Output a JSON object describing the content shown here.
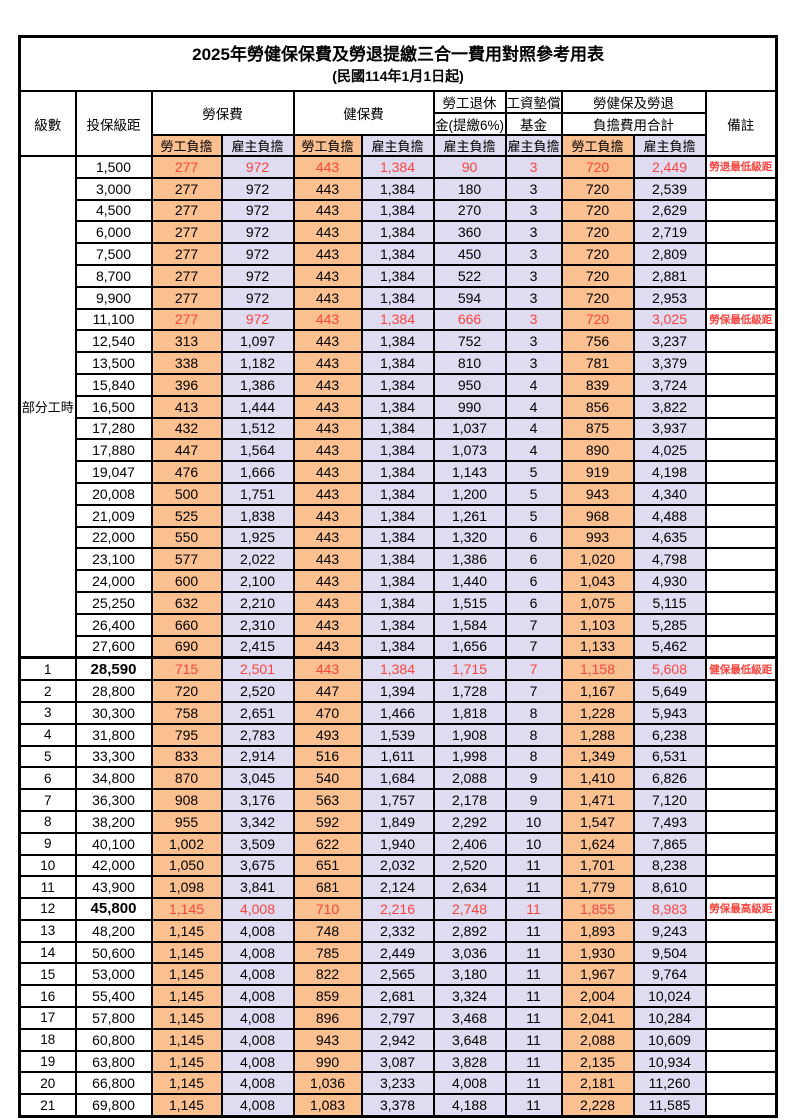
{
  "title": "2025年勞健保保費及勞退提繳三合一費用對照參考用表",
  "subtitle": "(民國114年1月1日起)",
  "header": {
    "level": "級數",
    "bracket": "投保級距",
    "labor_fee": "勞保費",
    "health_fee": "健保費",
    "pension_line1": "勞工退休",
    "pension_line2": "金(提繳6%)",
    "wage_fund_line1": "工資墊償",
    "wage_fund_line2": "基金",
    "total_line1": "勞健保及勞退",
    "total_line2": "負擔費用合計",
    "remark": "備註",
    "employee": "勞工負擔",
    "employer": "雇主負擔"
  },
  "groups": {
    "part_time_label": "部分工時"
  },
  "part_time_rowspan": 23,
  "colors": {
    "employee_bg": "#FAC090",
    "employer_bg": "#DFDBF0",
    "highlight_red": "#FA4540",
    "border": "#000000"
  },
  "rows": [
    {
      "level": null,
      "bracket": "1,500",
      "labor_emp": "277",
      "labor_er": "972",
      "health_emp": "443",
      "health_er": "1,384",
      "pension_er": "90",
      "fund_er": "3",
      "total_emp": "720",
      "total_er": "2,449",
      "remark": "勞退最低級距",
      "red": true
    },
    {
      "level": null,
      "bracket": "3,000",
      "labor_emp": "277",
      "labor_er": "972",
      "health_emp": "443",
      "health_er": "1,384",
      "pension_er": "180",
      "fund_er": "3",
      "total_emp": "720",
      "total_er": "2,539",
      "remark": "",
      "red": false
    },
    {
      "level": null,
      "bracket": "4,500",
      "labor_emp": "277",
      "labor_er": "972",
      "health_emp": "443",
      "health_er": "1,384",
      "pension_er": "270",
      "fund_er": "3",
      "total_emp": "720",
      "total_er": "2,629",
      "remark": "",
      "red": false
    },
    {
      "level": null,
      "bracket": "6,000",
      "labor_emp": "277",
      "labor_er": "972",
      "health_emp": "443",
      "health_er": "1,384",
      "pension_er": "360",
      "fund_er": "3",
      "total_emp": "720",
      "total_er": "2,719",
      "remark": "",
      "red": false
    },
    {
      "level": null,
      "bracket": "7,500",
      "labor_emp": "277",
      "labor_er": "972",
      "health_emp": "443",
      "health_er": "1,384",
      "pension_er": "450",
      "fund_er": "3",
      "total_emp": "720",
      "total_er": "2,809",
      "remark": "",
      "red": false
    },
    {
      "level": null,
      "bracket": "8,700",
      "labor_emp": "277",
      "labor_er": "972",
      "health_emp": "443",
      "health_er": "1,384",
      "pension_er": "522",
      "fund_er": "3",
      "total_emp": "720",
      "total_er": "2,881",
      "remark": "",
      "red": false
    },
    {
      "level": null,
      "bracket": "9,900",
      "labor_emp": "277",
      "labor_er": "972",
      "health_emp": "443",
      "health_er": "1,384",
      "pension_er": "594",
      "fund_er": "3",
      "total_emp": "720",
      "total_er": "2,953",
      "remark": "",
      "red": false
    },
    {
      "level": null,
      "bracket": "11,100",
      "labor_emp": "277",
      "labor_er": "972",
      "health_emp": "443",
      "health_er": "1,384",
      "pension_er": "666",
      "fund_er": "3",
      "total_emp": "720",
      "total_er": "3,025",
      "remark": "勞保最低級距",
      "red": true
    },
    {
      "level": null,
      "bracket": "12,540",
      "labor_emp": "313",
      "labor_er": "1,097",
      "health_emp": "443",
      "health_er": "1,384",
      "pension_er": "752",
      "fund_er": "3",
      "total_emp": "756",
      "total_er": "3,237",
      "remark": "",
      "red": false
    },
    {
      "level": null,
      "bracket": "13,500",
      "labor_emp": "338",
      "labor_er": "1,182",
      "health_emp": "443",
      "health_er": "1,384",
      "pension_er": "810",
      "fund_er": "3",
      "total_emp": "781",
      "total_er": "3,379",
      "remark": "",
      "red": false
    },
    {
      "level": null,
      "bracket": "15,840",
      "labor_emp": "396",
      "labor_er": "1,386",
      "health_emp": "443",
      "health_er": "1,384",
      "pension_er": "950",
      "fund_er": "4",
      "total_emp": "839",
      "total_er": "3,724",
      "remark": "",
      "red": false
    },
    {
      "level": null,
      "bracket": "16,500",
      "labor_emp": "413",
      "labor_er": "1,444",
      "health_emp": "443",
      "health_er": "1,384",
      "pension_er": "990",
      "fund_er": "4",
      "total_emp": "856",
      "total_er": "3,822",
      "remark": "",
      "red": false
    },
    {
      "level": null,
      "bracket": "17,280",
      "labor_emp": "432",
      "labor_er": "1,512",
      "health_emp": "443",
      "health_er": "1,384",
      "pension_er": "1,037",
      "fund_er": "4",
      "total_emp": "875",
      "total_er": "3,937",
      "remark": "",
      "red": false
    },
    {
      "level": null,
      "bracket": "17,880",
      "labor_emp": "447",
      "labor_er": "1,564",
      "health_emp": "443",
      "health_er": "1,384",
      "pension_er": "1,073",
      "fund_er": "4",
      "total_emp": "890",
      "total_er": "4,025",
      "remark": "",
      "red": false
    },
    {
      "level": null,
      "bracket": "19,047",
      "labor_emp": "476",
      "labor_er": "1,666",
      "health_emp": "443",
      "health_er": "1,384",
      "pension_er": "1,143",
      "fund_er": "5",
      "total_emp": "919",
      "total_er": "4,198",
      "remark": "",
      "red": false
    },
    {
      "level": null,
      "bracket": "20,008",
      "labor_emp": "500",
      "labor_er": "1,751",
      "health_emp": "443",
      "health_er": "1,384",
      "pension_er": "1,200",
      "fund_er": "5",
      "total_emp": "943",
      "total_er": "4,340",
      "remark": "",
      "red": false
    },
    {
      "level": null,
      "bracket": "21,009",
      "labor_emp": "525",
      "labor_er": "1,838",
      "health_emp": "443",
      "health_er": "1,384",
      "pension_er": "1,261",
      "fund_er": "5",
      "total_emp": "968",
      "total_er": "4,488",
      "remark": "",
      "red": false
    },
    {
      "level": null,
      "bracket": "22,000",
      "labor_emp": "550",
      "labor_er": "1,925",
      "health_emp": "443",
      "health_er": "1,384",
      "pension_er": "1,320",
      "fund_er": "6",
      "total_emp": "993",
      "total_er": "4,635",
      "remark": "",
      "red": false
    },
    {
      "level": null,
      "bracket": "23,100",
      "labor_emp": "577",
      "labor_er": "2,022",
      "health_emp": "443",
      "health_er": "1,384",
      "pension_er": "1,386",
      "fund_er": "6",
      "total_emp": "1,020",
      "total_er": "4,798",
      "remark": "",
      "red": false
    },
    {
      "level": null,
      "bracket": "24,000",
      "labor_emp": "600",
      "labor_er": "2,100",
      "health_emp": "443",
      "health_er": "1,384",
      "pension_er": "1,440",
      "fund_er": "6",
      "total_emp": "1,043",
      "total_er": "4,930",
      "remark": "",
      "red": false
    },
    {
      "level": null,
      "bracket": "25,250",
      "labor_emp": "632",
      "labor_er": "2,210",
      "health_emp": "443",
      "health_er": "1,384",
      "pension_er": "1,515",
      "fund_er": "6",
      "total_emp": "1,075",
      "total_er": "5,115",
      "remark": "",
      "red": false
    },
    {
      "level": null,
      "bracket": "26,400",
      "labor_emp": "660",
      "labor_er": "2,310",
      "health_emp": "443",
      "health_er": "1,384",
      "pension_er": "1,584",
      "fund_er": "7",
      "total_emp": "1,103",
      "total_er": "5,285",
      "remark": "",
      "red": false
    },
    {
      "level": null,
      "bracket": "27,600",
      "labor_emp": "690",
      "labor_er": "2,415",
      "health_emp": "443",
      "health_er": "1,384",
      "pension_er": "1,656",
      "fund_er": "7",
      "total_emp": "1,133",
      "total_er": "5,462",
      "remark": "",
      "red": false
    },
    {
      "level": "1",
      "bracket": "28,590",
      "labor_emp": "715",
      "labor_er": "2,501",
      "health_emp": "443",
      "health_er": "1,384",
      "pension_er": "1,715",
      "fund_er": "7",
      "total_emp": "1,158",
      "total_er": "5,608",
      "remark": "健保最低級距",
      "red": true,
      "bracket_bold": true,
      "thick_top": true
    },
    {
      "level": "2",
      "bracket": "28,800",
      "labor_emp": "720",
      "labor_er": "2,520",
      "health_emp": "447",
      "health_er": "1,394",
      "pension_er": "1,728",
      "fund_er": "7",
      "total_emp": "1,167",
      "total_er": "5,649",
      "remark": "",
      "red": false
    },
    {
      "level": "3",
      "bracket": "30,300",
      "labor_emp": "758",
      "labor_er": "2,651",
      "health_emp": "470",
      "health_er": "1,466",
      "pension_er": "1,818",
      "fund_er": "8",
      "total_emp": "1,228",
      "total_er": "5,943",
      "remark": "",
      "red": false
    },
    {
      "level": "4",
      "bracket": "31,800",
      "labor_emp": "795",
      "labor_er": "2,783",
      "health_emp": "493",
      "health_er": "1,539",
      "pension_er": "1,908",
      "fund_er": "8",
      "total_emp": "1,288",
      "total_er": "6,238",
      "remark": "",
      "red": false
    },
    {
      "level": "5",
      "bracket": "33,300",
      "labor_emp": "833",
      "labor_er": "2,914",
      "health_emp": "516",
      "health_er": "1,611",
      "pension_er": "1,998",
      "fund_er": "8",
      "total_emp": "1,349",
      "total_er": "6,531",
      "remark": "",
      "red": false
    },
    {
      "level": "6",
      "bracket": "34,800",
      "labor_emp": "870",
      "labor_er": "3,045",
      "health_emp": "540",
      "health_er": "1,684",
      "pension_er": "2,088",
      "fund_er": "9",
      "total_emp": "1,410",
      "total_er": "6,826",
      "remark": "",
      "red": false
    },
    {
      "level": "7",
      "bracket": "36,300",
      "labor_emp": "908",
      "labor_er": "3,176",
      "health_emp": "563",
      "health_er": "1,757",
      "pension_er": "2,178",
      "fund_er": "9",
      "total_emp": "1,471",
      "total_er": "7,120",
      "remark": "",
      "red": false
    },
    {
      "level": "8",
      "bracket": "38,200",
      "labor_emp": "955",
      "labor_er": "3,342",
      "health_emp": "592",
      "health_er": "1,849",
      "pension_er": "2,292",
      "fund_er": "10",
      "total_emp": "1,547",
      "total_er": "7,493",
      "remark": "",
      "red": false
    },
    {
      "level": "9",
      "bracket": "40,100",
      "labor_emp": "1,002",
      "labor_er": "3,509",
      "health_emp": "622",
      "health_er": "1,940",
      "pension_er": "2,406",
      "fund_er": "10",
      "total_emp": "1,624",
      "total_er": "7,865",
      "remark": "",
      "red": false
    },
    {
      "level": "10",
      "bracket": "42,000",
      "labor_emp": "1,050",
      "labor_er": "3,675",
      "health_emp": "651",
      "health_er": "2,032",
      "pension_er": "2,520",
      "fund_er": "11",
      "total_emp": "1,701",
      "total_er": "8,238",
      "remark": "",
      "red": false
    },
    {
      "level": "11",
      "bracket": "43,900",
      "labor_emp": "1,098",
      "labor_er": "3,841",
      "health_emp": "681",
      "health_er": "2,124",
      "pension_er": "2,634",
      "fund_er": "11",
      "total_emp": "1,779",
      "total_er": "8,610",
      "remark": "",
      "red": false
    },
    {
      "level": "12",
      "bracket": "45,800",
      "labor_emp": "1,145",
      "labor_er": "4,008",
      "health_emp": "710",
      "health_er": "2,216",
      "pension_er": "2,748",
      "fund_er": "11",
      "total_emp": "1,855",
      "total_er": "8,983",
      "remark": "勞保最高級距",
      "red": true,
      "bracket_bold": true
    },
    {
      "level": "13",
      "bracket": "48,200",
      "labor_emp": "1,145",
      "labor_er": "4,008",
      "health_emp": "748",
      "health_er": "2,332",
      "pension_er": "2,892",
      "fund_er": "11",
      "total_emp": "1,893",
      "total_er": "9,243",
      "remark": "",
      "red": false
    },
    {
      "level": "14",
      "bracket": "50,600",
      "labor_emp": "1,145",
      "labor_er": "4,008",
      "health_emp": "785",
      "health_er": "2,449",
      "pension_er": "3,036",
      "fund_er": "11",
      "total_emp": "1,930",
      "total_er": "9,504",
      "remark": "",
      "red": false
    },
    {
      "level": "15",
      "bracket": "53,000",
      "labor_emp": "1,145",
      "labor_er": "4,008",
      "health_emp": "822",
      "health_er": "2,565",
      "pension_er": "3,180",
      "fund_er": "11",
      "total_emp": "1,967",
      "total_er": "9,764",
      "remark": "",
      "red": false
    },
    {
      "level": "16",
      "bracket": "55,400",
      "labor_emp": "1,145",
      "labor_er": "4,008",
      "health_emp": "859",
      "health_er": "2,681",
      "pension_er": "3,324",
      "fund_er": "11",
      "total_emp": "2,004",
      "total_er": "10,024",
      "remark": "",
      "red": false
    },
    {
      "level": "17",
      "bracket": "57,800",
      "labor_emp": "1,145",
      "labor_er": "4,008",
      "health_emp": "896",
      "health_er": "2,797",
      "pension_er": "3,468",
      "fund_er": "11",
      "total_emp": "2,041",
      "total_er": "10,284",
      "remark": "",
      "red": false
    },
    {
      "level": "18",
      "bracket": "60,800",
      "labor_emp": "1,145",
      "labor_er": "4,008",
      "health_emp": "943",
      "health_er": "2,942",
      "pension_er": "3,648",
      "fund_er": "11",
      "total_emp": "2,088",
      "total_er": "10,609",
      "remark": "",
      "red": false
    },
    {
      "level": "19",
      "bracket": "63,800",
      "labor_emp": "1,145",
      "labor_er": "4,008",
      "health_emp": "990",
      "health_er": "3,087",
      "pension_er": "3,828",
      "fund_er": "11",
      "total_emp": "2,135",
      "total_er": "10,934",
      "remark": "",
      "red": false
    },
    {
      "level": "20",
      "bracket": "66,800",
      "labor_emp": "1,145",
      "labor_er": "4,008",
      "health_emp": "1,036",
      "health_er": "3,233",
      "pension_er": "4,008",
      "fund_er": "11",
      "total_emp": "2,181",
      "total_er": "11,260",
      "remark": "",
      "red": false
    },
    {
      "level": "21",
      "bracket": "69,800",
      "labor_emp": "1,145",
      "labor_er": "4,008",
      "health_emp": "1,083",
      "health_er": "3,378",
      "pension_er": "4,188",
      "fund_er": "11",
      "total_emp": "2,228",
      "total_er": "11,585",
      "remark": "",
      "red": false
    }
  ]
}
